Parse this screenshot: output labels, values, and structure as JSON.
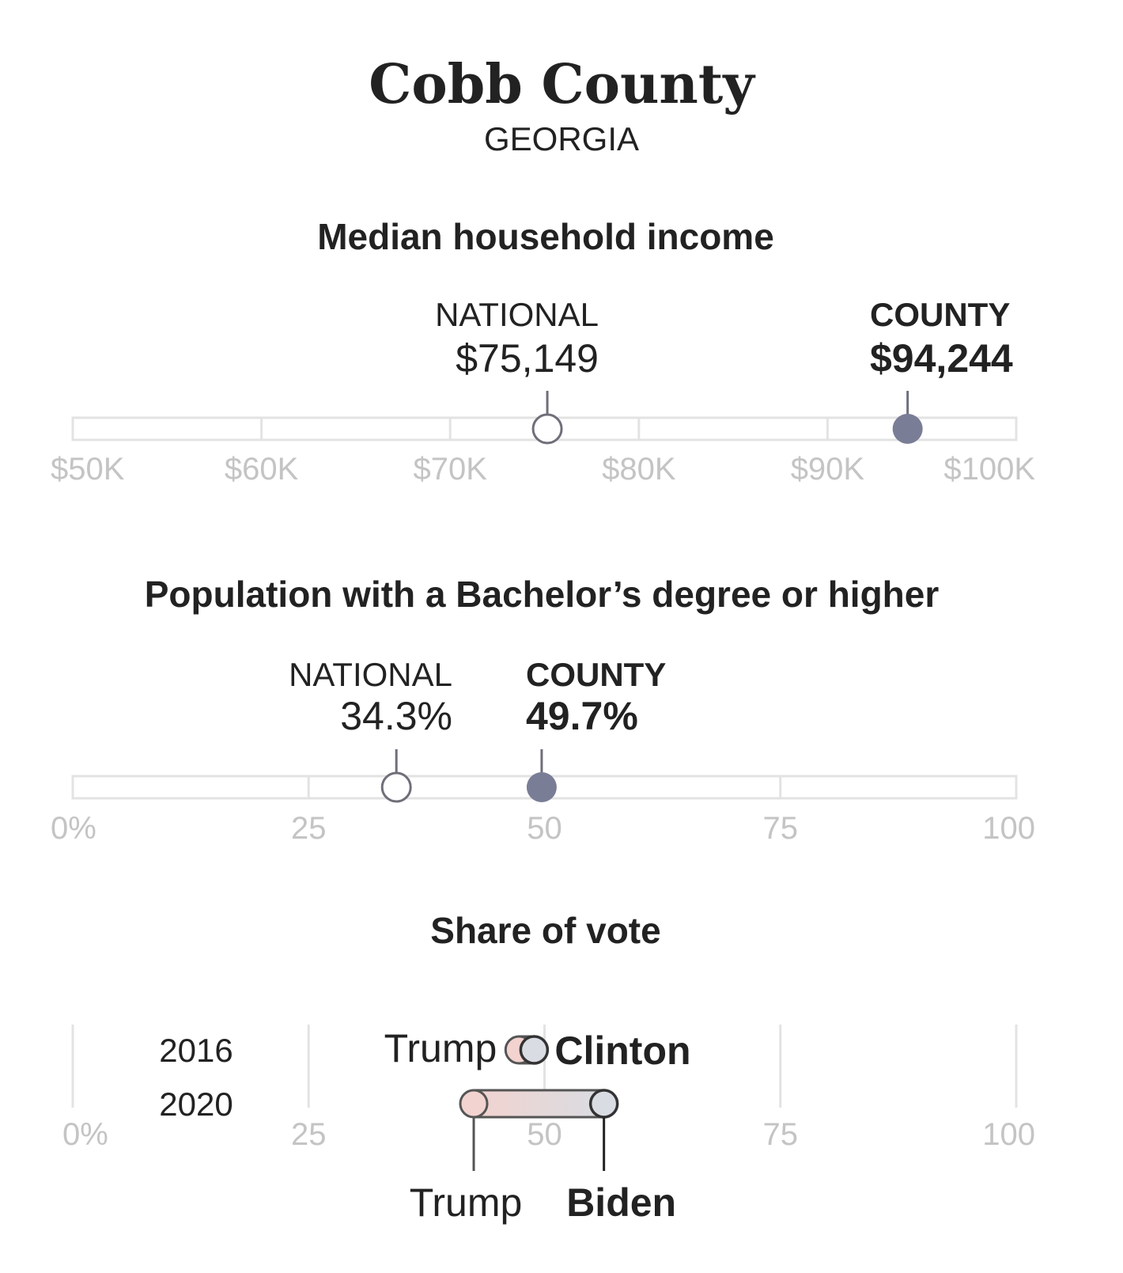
{
  "header": {
    "title": "Cobb County",
    "subtitle": "GEORGIA"
  },
  "colors": {
    "text": "#222222",
    "muted": "#c4c4c4",
    "track": "#e3e3e3",
    "county_dot": "#7a7d96",
    "stem": "#6f6f7a",
    "trump_fill": "#f2d3cf",
    "dem_fill": "#d9dce2"
  },
  "chart_data": [
    {
      "id": "income",
      "type": "dot-range",
      "title": "Median household income",
      "range": [
        50000,
        100000
      ],
      "ticks": [
        50000,
        60000,
        70000,
        80000,
        90000,
        100000
      ],
      "tick_labels": [
        "$50K",
        "$60K",
        "$70K",
        "$80K",
        "$90K",
        "$100K"
      ],
      "national": {
        "label": "NATIONAL",
        "value": 75149,
        "value_label": "$75,149"
      },
      "county": {
        "label": "COUNTY",
        "value": 94244,
        "value_label": "$94,244"
      }
    },
    {
      "id": "education",
      "type": "dot-range",
      "title": "Population with a Bachelor’s degree or higher",
      "range": [
        0,
        100
      ],
      "ticks": [
        0,
        25,
        50,
        75,
        100
      ],
      "tick_labels": [
        "0%",
        "25",
        "50",
        "75",
        "100"
      ],
      "national": {
        "label": "NATIONAL",
        "value": 34.3,
        "value_label": "34.3%"
      },
      "county": {
        "label": "COUNTY",
        "value": 49.7,
        "value_label": "49.7%"
      }
    },
    {
      "id": "vote",
      "type": "dumbbell",
      "title": "Share of vote",
      "range": [
        0,
        100
      ],
      "ticks": [
        0,
        25,
        50,
        75,
        100
      ],
      "tick_labels": [
        "0%",
        "25",
        "50",
        "75",
        "100"
      ],
      "rows": [
        {
          "year": "2016",
          "rep": {
            "name": "Trump",
            "value": 47.3
          },
          "dem": {
            "name": "Clinton",
            "value": 48.9
          }
        },
        {
          "year": "2020",
          "rep": {
            "name": "Trump",
            "value": 42.5
          },
          "dem": {
            "name": "Biden",
            "value": 56.3
          }
        }
      ]
    }
  ]
}
